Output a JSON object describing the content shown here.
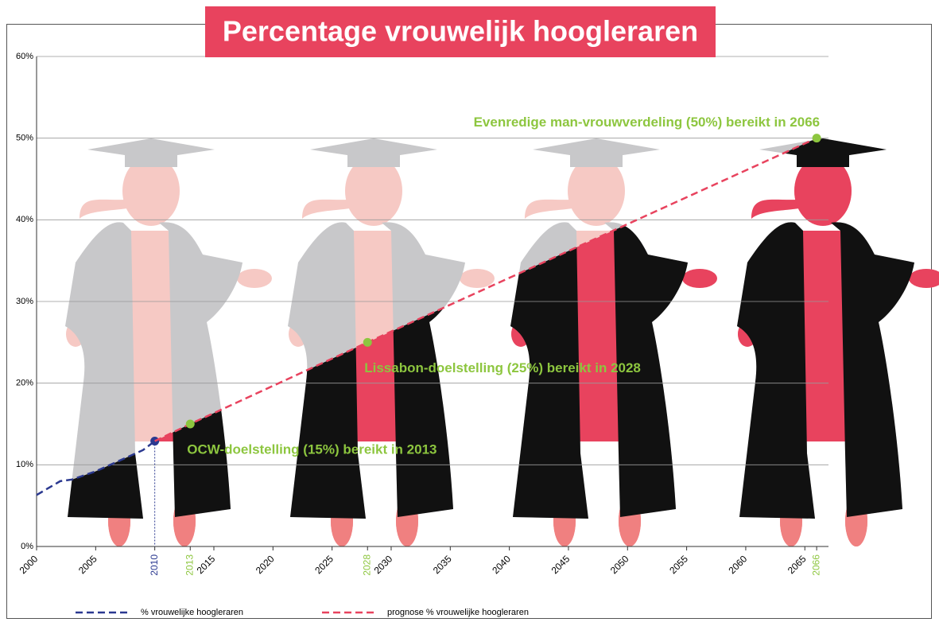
{
  "chart_data": {
    "type": "line",
    "title": "Percentage vrouwelijk hoogleraren",
    "xlim": [
      2000,
      2067
    ],
    "xticks": [
      2000,
      2005,
      2015,
      2020,
      2025,
      2030,
      2035,
      2040,
      2045,
      2050,
      2055,
      2060,
      2065
    ],
    "ylim": [
      0,
      60
    ],
    "yticks": [
      {
        "value": 0,
        "label": "0%"
      },
      {
        "value": 10,
        "label": "10%"
      },
      {
        "value": 20,
        "label": "20%"
      },
      {
        "value": 30,
        "label": "30%"
      },
      {
        "value": 40,
        "label": "40%"
      },
      {
        "value": 50,
        "label": "50%"
      },
      {
        "value": 60,
        "label": "60%"
      }
    ],
    "grid": true,
    "legend": "bottom",
    "series": [
      {
        "name": "% vrouwelijke hoogleraren",
        "color": "#2b3990",
        "x": [
          2000,
          2002,
          2003,
          2005,
          2007,
          2009,
          2010
        ],
        "values": [
          6.3,
          8,
          8.2,
          9.2,
          10.5,
          11.8,
          12.9
        ]
      },
      {
        "name": "prognose % vrouwelijke hoogleraren",
        "color": "#e8435e",
        "label_color": "#8dc63f",
        "x": [
          2010,
          2013,
          2028,
          2066
        ],
        "values": [
          12.9,
          15,
          25,
          50
        ],
        "point_labels": [
          null,
          "OCW-doelstelling (15%) bereikt in 2013",
          "Lissabon-doelstelling (25%) bereikt in 2028",
          "Evenredige man-vrouwverdeling (50%) bereikt in 2066"
        ]
      }
    ]
  }
}
